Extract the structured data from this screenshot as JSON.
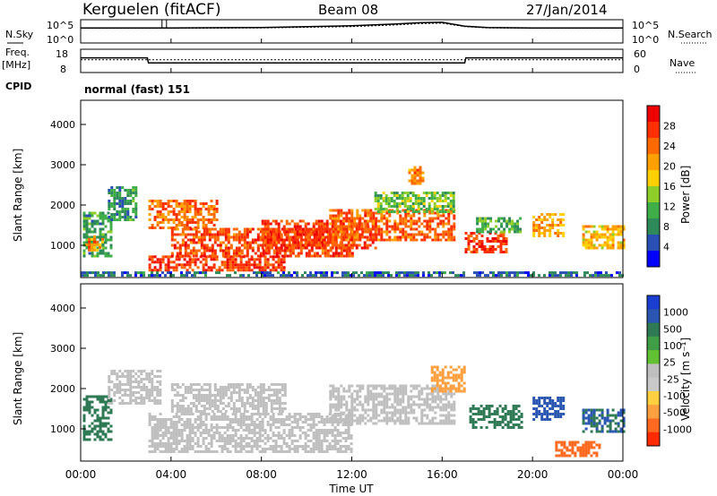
{
  "header": {
    "station": "Kerguelen (fitACF)",
    "beam": "Beam 08",
    "date": "27/Jan/2014"
  },
  "panels": {
    "nsky": {
      "label": "N.Sky",
      "ticks": [
        "10^5",
        "10^0"
      ]
    },
    "nsearch": {
      "label": "N.Search",
      "ticks": [
        "10^5",
        "10^0"
      ]
    },
    "freq": {
      "label_line1": "Freq.",
      "label_line2": "[MHz]",
      "ticks": [
        "18",
        "8"
      ]
    },
    "nave": {
      "label": "Nave",
      "ticks": [
        "60",
        "0"
      ]
    },
    "cpid": {
      "label": "CPID",
      "value": "normal (fast) 151"
    }
  },
  "colors": {
    "power_scale": [
      "#0000ff",
      "#2a4fb4",
      "#2f8a5a",
      "#3fae48",
      "#8fce2a",
      "#ffd000",
      "#ffa000",
      "#ff6a00",
      "#ff3000",
      "#ee0000"
    ],
    "velocity_scale": [
      "#1a3fd0",
      "#2a55b0",
      "#2f7a55",
      "#3e9d45",
      "#62c033",
      "#bfbfbf",
      "#c9c9c9",
      "#ffd040",
      "#ffa040",
      "#ff6a20",
      "#ff2a00"
    ],
    "axis": "#000000"
  },
  "chart_data": [
    {
      "type": "line",
      "title": "N.Sky / N.Search",
      "x_unit": "hours UT",
      "xlim": [
        0,
        24
      ],
      "x": [
        0,
        4,
        8,
        12,
        14,
        15,
        16,
        17,
        18,
        20,
        22,
        24
      ],
      "series": [
        {
          "name": "N.Sky",
          "values": [
            3.3,
            3.3,
            3.4,
            3.8,
            4.2,
            4.5,
            4.6,
            3.7,
            3.4,
            3.3,
            3.3,
            3.3
          ]
        },
        {
          "name": "N.Search",
          "values": [
            3.2,
            3.2,
            3.3,
            3.6,
            4.0,
            4.3,
            4.4,
            3.6,
            3.3,
            3.2,
            3.2,
            3.2
          ]
        }
      ]
    },
    {
      "type": "line",
      "title": "Freq / Nave",
      "xlim": [
        0,
        24
      ],
      "x": [
        0,
        2.95,
        3.0,
        17.0,
        17.05,
        24
      ],
      "series": [
        {
          "name": "Freq.",
          "values": [
            14.4,
            14.4,
            12.1,
            12.1,
            14.4,
            14.4
          ]
        },
        {
          "name": "Nave",
          "values": [
            33,
            33,
            33,
            33,
            33,
            33
          ]
        }
      ]
    },
    {
      "type": "heatmap",
      "title": "Power",
      "ylabel": "Slant Range [km]",
      "colorbar_label": "Power [dB]",
      "colorbar_ticks": [
        "28",
        "24",
        "20",
        "16",
        "12",
        "8",
        "4"
      ],
      "colorbar_range": [
        0,
        32
      ],
      "xlim": [
        0,
        24
      ],
      "ylim": [
        200,
        4600
      ],
      "yticks": [
        "1000",
        "2000",
        "3000",
        "4000"
      ],
      "regions": [
        {
          "t": [
            0.1,
            1.3
          ],
          "r": [
            700,
            1800
          ],
          "db": 10
        },
        {
          "t": [
            0.2,
            1.0
          ],
          "r": [
            850,
            1200
          ],
          "db": 22
        },
        {
          "t": [
            1.2,
            2.5
          ],
          "r": [
            1600,
            2400
          ],
          "db": 9
        },
        {
          "t": [
            3.0,
            9.0
          ],
          "r": [
            350,
            700
          ],
          "db": 27
        },
        {
          "t": [
            3.0,
            6.0
          ],
          "r": [
            1400,
            2100
          ],
          "db": 24
        },
        {
          "t": [
            4.0,
            12.0
          ],
          "r": [
            700,
            1400
          ],
          "db": 26
        },
        {
          "t": [
            8.0,
            13.0
          ],
          "r": [
            900,
            1600
          ],
          "db": 27
        },
        {
          "t": [
            11.0,
            16.5
          ],
          "r": [
            1100,
            1900
          ],
          "db": 25
        },
        {
          "t": [
            13.0,
            16.5
          ],
          "r": [
            1800,
            2300
          ],
          "db": 13
        },
        {
          "t": [
            14.5,
            15.2
          ],
          "r": [
            2500,
            2900
          ],
          "db": 23
        },
        {
          "t": [
            17.0,
            18.8
          ],
          "r": [
            800,
            1300
          ],
          "db": 27
        },
        {
          "t": [
            17.5,
            19.5
          ],
          "r": [
            1300,
            1700
          ],
          "db": 11
        },
        {
          "t": [
            20.0,
            21.4
          ],
          "r": [
            1200,
            1800
          ],
          "db": 21
        },
        {
          "t": [
            22.2,
            24.0
          ],
          "r": [
            900,
            1500
          ],
          "db": 19
        },
        {
          "t": [
            0.0,
            24.0
          ],
          "r": [
            220,
            350
          ],
          "db": 6
        }
      ]
    },
    {
      "type": "heatmap",
      "title": "Velocity",
      "ylabel": "Slant Range [km]",
      "xlabel": "Time UT",
      "colorbar_label": "Velocity [m s⁻¹]",
      "colorbar_ticks": [
        "1000",
        "500",
        "100",
        "25",
        "-25",
        "-100",
        "-500",
        "-1000"
      ],
      "xlim": [
        0,
        24
      ],
      "ylim": [
        200,
        4600
      ],
      "xticks": [
        "00:00",
        "04:00",
        "08:00",
        "12:00",
        "16:00",
        "20:00",
        "00:00"
      ],
      "yticks": [
        "1000",
        "2000",
        "3000",
        "4000"
      ],
      "regions": [
        {
          "t": [
            0.1,
            1.3
          ],
          "r": [
            700,
            1800
          ],
          "v": 150
        },
        {
          "t": [
            1.2,
            3.5
          ],
          "r": [
            1600,
            2400
          ],
          "v": 0
        },
        {
          "t": [
            3.0,
            12.0
          ],
          "r": [
            400,
            1400
          ],
          "v": 0
        },
        {
          "t": [
            4.0,
            9.0
          ],
          "r": [
            1400,
            2100
          ],
          "v": 0
        },
        {
          "t": [
            11.0,
            16.5
          ],
          "r": [
            1100,
            2100
          ],
          "v": 0
        },
        {
          "t": [
            15.5,
            17.0
          ],
          "r": [
            1900,
            2500
          ],
          "v": -250
        },
        {
          "t": [
            17.2,
            19.5
          ],
          "r": [
            1000,
            1600
          ],
          "v": 200
        },
        {
          "t": [
            20.0,
            21.4
          ],
          "r": [
            1200,
            1800
          ],
          "v": 500
        },
        {
          "t": [
            22.2,
            24.0
          ],
          "r": [
            900,
            1500
          ],
          "v": 300
        },
        {
          "t": [
            21.0,
            23.0
          ],
          "r": [
            300,
            700
          ],
          "v": -400
        }
      ]
    }
  ]
}
